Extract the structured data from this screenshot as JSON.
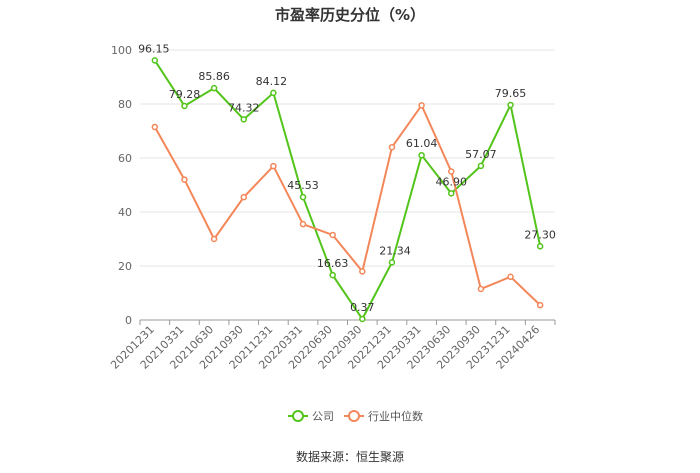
{
  "chart_data": {
    "type": "line",
    "title": "市盈率历史分位（%）",
    "categories": [
      "20201231",
      "20210331",
      "20210630",
      "20210930",
      "20211231",
      "20220331",
      "20220630",
      "20220930",
      "20221231",
      "20230331",
      "20230630",
      "20230930",
      "20231231",
      "20240426"
    ],
    "ylim": [
      0,
      100
    ],
    "yticks": [
      "0",
      "20",
      "40",
      "60",
      "80",
      "100"
    ],
    "grid": true,
    "legend_position": "bottom",
    "series": [
      {
        "name": "公司",
        "color": "#52c41a",
        "values": [
          96.15,
          79.28,
          85.86,
          74.32,
          84.12,
          45.53,
          16.63,
          0.37,
          21.34,
          61.04,
          46.9,
          57.07,
          79.65,
          27.3
        ],
        "labels": [
          "96.15",
          "79.28",
          "85.86",
          "74.32",
          "84.12",
          "45.53",
          "16.63",
          "0.37",
          "21.34",
          "61.04",
          "46.90",
          "57.07",
          "79.65",
          "27.30"
        ]
      },
      {
        "name": "行业中位数",
        "color": "#f4875a",
        "values": [
          71.5,
          52.0,
          30.0,
          45.5,
          57.0,
          35.5,
          31.5,
          18.0,
          64.0,
          79.5,
          55.0,
          11.5,
          16.0,
          5.5
        ]
      }
    ]
  },
  "footer": {
    "source": "数据来源：恒生聚源"
  }
}
